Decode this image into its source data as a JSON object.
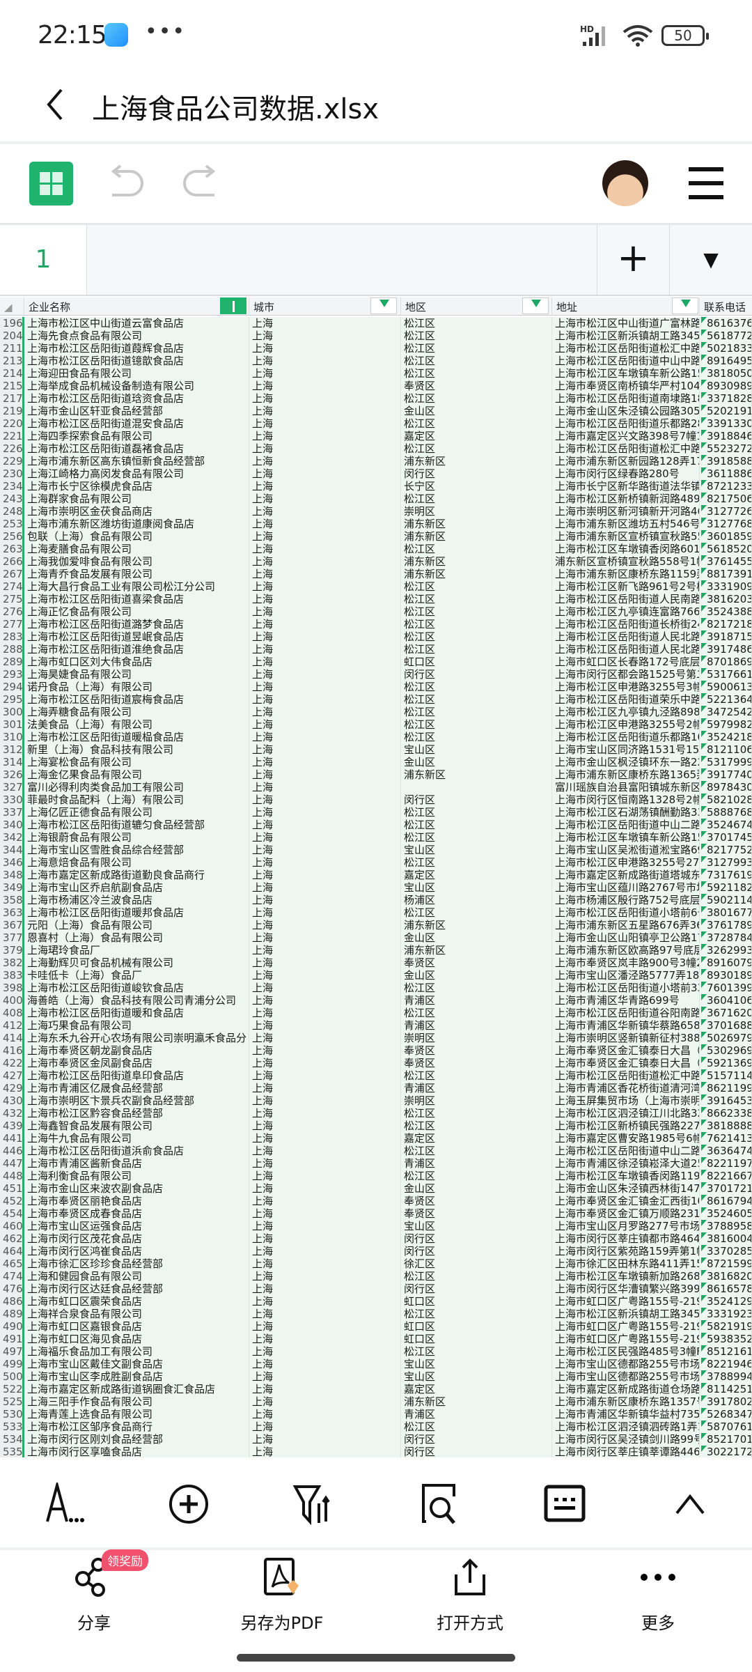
{
  "status_bar": {
    "time": "22:15",
    "battery": "50",
    "network": "HD"
  },
  "header": {
    "title": "上海食品公司数据.xlsx",
    "back_icon": "chevron-left-icon"
  },
  "toolbar": {
    "apps_icon": "grid-icon",
    "undo_icon": "undo-icon",
    "redo_icon": "redo-icon",
    "menu_icon": "hamburger-icon"
  },
  "formula_bar": {
    "cell_ref": "1",
    "add_label": "+",
    "dropdown_label": "▼"
  },
  "colors": {
    "accent": "#1fb36d",
    "selection": "#edf6f1",
    "badge": "#f2506c"
  },
  "table": {
    "columns": [
      "企业名称",
      "城市",
      "地区",
      "地址",
      "联系电话"
    ],
    "rows": [
      [
        "196",
        "上海市松江区中山街道云富食品店",
        "上海",
        "松江区",
        "上海市松江区中山街道广富林路",
        "8616376"
      ],
      [
        "204",
        "上海先食点食品有限公司",
        "上海",
        "松江区",
        "上海市松江区新浜镇胡工路345号",
        "5618772"
      ],
      [
        "211",
        "上海市松江区岳阳街道葭辉食品店",
        "上海",
        "松江区",
        "上海市松江区岳阳街道松汇中路",
        "5021833"
      ],
      [
        "213",
        "上海市松江区岳阳街道镱歆食品店",
        "上海",
        "松江区",
        "上海市松江区岳阳街道中山中路",
        "8916495"
      ],
      [
        "214",
        "上海迎田食品有限公司",
        "上海",
        "松江区",
        "上海市松江区车墩镇车新公路150",
        "3818050"
      ],
      [
        "215",
        "上海举成食品机械设备制造有限公司",
        "上海",
        "奉贤区",
        "上海市奉贤区南桥镇华严村1048",
        "8930989"
      ],
      [
        "217",
        "上海市松江区岳阳街道琀资食品店",
        "上海",
        "松江区",
        "上海市松江区岳阳街道南埭路18",
        "3371828"
      ],
      [
        "219",
        "上海市金山区轩亚食品经营部",
        "上海",
        "金山区",
        "上海市金山区朱泾镇公园路305弄",
        "5202191"
      ],
      [
        "220",
        "上海市松江区岳阳街道混安食品店",
        "上海",
        "松江区",
        "上海市松江区岳阳街道乐都路28",
        "3391330"
      ],
      [
        "221",
        "上海四季探索食品有限公司",
        "上海",
        "嘉定区",
        "上海市嘉定区兴文路398号7幢1层",
        "3918846"
      ],
      [
        "226",
        "上海市松江区岳阳街道磊褚食品店",
        "上海",
        "松江区",
        "上海市松江区岳阳街道松汇中路",
        "5523272"
      ],
      [
        "229",
        "上海市浦东新区高东镇恒新食品经营部",
        "上海",
        "浦东新区",
        "上海市浦东新区新园路128弄17号",
        "3918588"
      ],
      [
        "230",
        "上海江崎格力高闵发食品有限公司",
        "上海",
        "闵行区",
        "上海市闵行区绿春路280号",
        "3611886"
      ],
      [
        "234",
        "上海市长宁区徐模虎食品店",
        "上海",
        "长宁区",
        "上海市长宁区新华路街道法华镇",
        "8721233"
      ],
      [
        "243",
        "上海群家食品有限公司",
        "上海",
        "松江区",
        "上海市松江区新桥镇新润路489号",
        "8217506"
      ],
      [
        "248",
        "上海市崇明区金茯食品商店",
        "上海",
        "崇明区",
        "上海市崇明区新河镇新开河路46",
        "3127726"
      ],
      [
        "253",
        "上海市浦东新区潍坊街道康阅食品店",
        "上海",
        "浦东新区",
        "上海市浦东新区潍坊五村546号",
        "3127768"
      ],
      [
        "256",
        "包联（上海）食品有限公司",
        "上海",
        "浦东新区",
        "上海市浦东新区宣桥镇宣秋路55",
        "3601859"
      ],
      [
        "263",
        "上海麦膳食品有限公司",
        "上海",
        "松江区",
        "上海市松江区车墩镇香闵路601号",
        "5618520"
      ],
      [
        "266",
        "上海我伽爱啡食品有限公司",
        "上海",
        "浦东新区",
        "浦东新区宣桥镇宣秋路558号1幢",
        "3761455"
      ],
      [
        "267",
        "上海青乔食品发展有限公司",
        "上海",
        "浦东新区",
        "上海市浦东新区康桥东路1159弄",
        "8817391"
      ],
      [
        "274",
        "上海大昌行食品工业有限公司松江分公司",
        "上海",
        "松江区",
        "上海市松江区新飞路961号2号楼",
        "3331909"
      ],
      [
        "275",
        "上海市松江区岳阳街道喜梁食品店",
        "上海",
        "松江区",
        "上海市松江区岳阳街道人民南路",
        "3816203"
      ],
      [
        "276",
        "上海正忆食品有限公司",
        "上海",
        "松江区",
        "上海市松江区九亭镇连富路766号",
        "3524388"
      ],
      [
        "277",
        "上海市松江区岳阳街道潞梦食品店",
        "上海",
        "松江区",
        "上海市松江区岳阳街道长桥街24",
        "8217218"
      ],
      [
        "283",
        "上海市松江区岳阳街道昱岷食品店",
        "上海",
        "松江区",
        "上海市松江区岳阳街道人民北路",
        "3918715"
      ],
      [
        "288",
        "上海市松江区岳阳街道淮绝食品店",
        "上海",
        "松江区",
        "上海市松江区岳阳街道人民北路",
        "3917486"
      ],
      [
        "289",
        "上海市虹口区刘大伟食品店",
        "上海",
        "虹口区",
        "上海市虹口区长春路172号底层三",
        "8701869"
      ],
      [
        "293",
        "上海昊婕食品有限公司",
        "上海",
        "闵行区",
        "上海市闵行区都会路1525号第二",
        "5317661"
      ],
      [
        "294",
        "诺丹食品（上海）有限公司",
        "上海",
        "松江区",
        "上海市松江区申港路3255号3幢",
        "5900613"
      ],
      [
        "295",
        "上海市松江区岳阳街道宸梅食品店",
        "上海",
        "松江区",
        "上海市松江区岳阳街道荣乐中路",
        "5221364"
      ],
      [
        "300",
        "上海弄糖食品有限公司",
        "上海",
        "松江区",
        "上海市松江区九亭镇九泾路898号",
        "3472542"
      ],
      [
        "301",
        "法美食品（上海）有限公司",
        "上海",
        "松江区",
        "上海市松江区申港路3255号2幢",
        "5979982"
      ],
      [
        "310",
        "上海市松江区岳阳街道暖榀食品店",
        "上海",
        "松江区",
        "上海市松江区岳阳街道乐都路10",
        "3524218"
      ],
      [
        "312",
        "新里（上海）食品科技有限公司",
        "上海",
        "宝山区",
        "上海市宝山区同济路1531号15幢",
        "8121106"
      ],
      [
        "314",
        "上海宴松食品有限公司",
        "上海",
        "金山区",
        "上海市金山区枫泾镇环东一路22",
        "5317999"
      ],
      [
        "326",
        "上海金亿果食品有限公司",
        "上海",
        "浦东新区",
        "上海市浦东新区康桥东路1365弄",
        "3917740"
      ],
      [
        "327",
        "富川必得利肉类食品加工有限公司",
        "上海",
        "",
        "富川瑶族自治县富阳镇城东新区",
        "8978430"
      ],
      [
        "330",
        "菲最时食品配料（上海）有限公司",
        "上海",
        "闵行区",
        "上海市闵行区恒南路1328号2幢5",
        "5821028"
      ],
      [
        "337",
        "上海亿匠正德食品有限公司",
        "上海",
        "松江区",
        "上海市松江区石湖荡镇酬勤路33",
        "5888768"
      ],
      [
        "340",
        "上海市松江区岳阳街道辘匀食品经营部",
        "上海",
        "松江区",
        "上海市松江区岳阳街道中山二路",
        "3524674"
      ],
      [
        "342",
        "上海银蔚食品有限公司",
        "上海",
        "松江区",
        "上海市松江区车墩镇车新公路150",
        "3701745"
      ],
      [
        "344",
        "上海市宝山区雪胜食品综合经营部",
        "上海",
        "宝山区",
        "上海市宝山区吴淞街道淞宝路69",
        "8217752"
      ],
      [
        "346",
        "上海意焙食品有限公司",
        "上海",
        "松江区",
        "上海市松江区申港路3255号27幢",
        "3127993"
      ],
      [
        "348",
        "上海市嘉定区新成路街道勤良食品商行",
        "上海",
        "嘉定区",
        "上海市嘉定区新成路街道塔城东",
        "7317619"
      ],
      [
        "349",
        "上海市宝山区乔启航副食品店",
        "上海",
        "宝山区",
        "上海市宝山区蕴川路2767号市场",
        "5921182"
      ],
      [
        "358",
        "上海市杨浦区冷兰波食品店",
        "上海",
        "杨浦区",
        "上海市杨浦区殷行路752号底层",
        "5902114"
      ],
      [
        "363",
        "上海市松江区岳阳街道暖邦食品店",
        "上海",
        "松江区",
        "上海市松江区岳阳街道小塔前6号",
        "3801677"
      ],
      [
        "367",
        "元阳（上海）食品有限公司",
        "上海",
        "浦东新区",
        "上海市浦东新区五星路676弄36",
        "3761789"
      ],
      [
        "377",
        "恩喜村（上海）食品有限公司",
        "上海",
        "金山区",
        "上海市金山区山阳镇亭卫公路178",
        "3728784"
      ],
      [
        "379",
        "上海珺玲食品厂",
        "上海",
        "浦东新区",
        "上海市浦东新区欧高路97号底层",
        "3262993"
      ],
      [
        "382",
        "上海勤辉贝可食品机械有限公司",
        "上海",
        "奉贤区",
        "上海市奉贤区岚丰路900号3幢2",
        "8916079"
      ],
      [
        "383",
        "卡哇低卡（上海）食品厂",
        "上海",
        "金山区",
        "上海市宝山区潘泾路5777弄188号",
        "8930189"
      ],
      [
        "398",
        "上海市松江区岳阳街道峻钦食品店",
        "上海",
        "松江区",
        "上海市松江区岳阳街道小塔前33",
        "7601399"
      ],
      [
        "400",
        "海善皓（上海）食品科技有限公司青浦分公司",
        "上海",
        "青浦区",
        "上海市青浦区华青路699号",
        "3604106"
      ],
      [
        "408",
        "上海市松江区岳阳街道暖和食品店",
        "上海",
        "松江区",
        "上海市松江区岳阳街道谷阳南路",
        "3671620"
      ],
      [
        "412",
        "上海巧果食品有限公司",
        "上海",
        "青浦区",
        "上海市青浦区华新镇华蔡路658号",
        "3701688"
      ],
      [
        "414",
        "上海东禾九谷开心农场有限公司崇明瀛禾食品分",
        "上海",
        "崇明区",
        "上海市崇明区竖新镇新征村388号",
        "5026979"
      ],
      [
        "416",
        "上海市奉贤区朝龙副食品店",
        "上海",
        "奉贤区",
        "上海市奉贤区金汇镇泰日大昌（",
        "5302969"
      ],
      [
        "422",
        "上海市奉贤区金凤副食品店",
        "上海",
        "奉贤区",
        "上海市奉贤区金汇镇泰日大昌（",
        "5921369"
      ],
      [
        "427",
        "上海市松江区岳阳街道阜印食品店",
        "上海",
        "松江区",
        "上海市松江区岳阳街道松汇中路",
        "5157114"
      ],
      [
        "429",
        "上海市青浦区亿晟食品经营部",
        "上海",
        "青浦区",
        "上海市青浦区香花桥街道清河湾",
        "8621199"
      ],
      [
        "430",
        "上海市崇明区卞景兵农副食品经营部",
        "上海",
        "崇明区",
        "上海玉屏集贸市场（上海市崇明",
        "3916453"
      ],
      [
        "432",
        "上海市松江区黔容食品经营部",
        "上海",
        "松江区",
        "上海市松江区泗泾镇江川北路32",
        "8662338"
      ],
      [
        "439",
        "上海鑫智食品发展有限公司",
        "上海",
        "松江区",
        "上海市松江区新桥镇民强路227号",
        "3818888"
      ],
      [
        "441",
        "上海牛九食品有限公司",
        "上海",
        "嘉定区",
        "上海市嘉定区曹安路1985号6幢2",
        "7621413"
      ],
      [
        "446",
        "上海市松江区岳阳街道浜俞食品店",
        "上海",
        "松江区",
        "上海市松江区岳阳街道中山二路",
        "3636474"
      ],
      [
        "447",
        "上海市青浦区酱新食品店",
        "上海",
        "青浦区",
        "上海市青浦区徐泾镇崧泽大道25",
        "8221197"
      ],
      [
        "448",
        "上海利衡食品有限公司",
        "上海",
        "松江区",
        "上海市松江区车墩镇香闵路1191、",
        "8221667"
      ],
      [
        "451",
        "上海市金山区来波农副食品店",
        "上海",
        "金山区",
        "上海市金山区朱泾镇西林街147号",
        "3701721"
      ],
      [
        "452",
        "上海市奉贤区丽艳食品店",
        "上海",
        "奉贤区",
        "上海市奉贤区金汇镇金汇西街10",
        "8616794"
      ],
      [
        "454",
        "上海市奉贤区成春食品店",
        "上海",
        "奉贤区",
        "上海市奉贤区金汇镇万顺路2316",
        "3524605"
      ],
      [
        "460",
        "上海市宝山区运强食品店",
        "上海",
        "宝山区",
        "上海市宝山区月罗路277号市场内",
        "3788958"
      ],
      [
        "462",
        "上海市闵行区茂花食品店",
        "上海",
        "闵行区",
        "上海市闵行区莘庄镇都市路4640",
        "3816004"
      ],
      [
        "464",
        "上海市闵行区鸿崔食品店",
        "上海",
        "闵行区",
        "上海市闵行区紫苑路159弄第1幢",
        "3370285"
      ],
      [
        "465",
        "上海市徐汇区珍珍食品经营部",
        "上海",
        "徐汇区",
        "上海市徐汇区田林东路411弄15号",
        "8721599"
      ],
      [
        "474",
        "上海和健园食品有限公司",
        "上海",
        "松江区",
        "上海市松江区车墩镇新加路268号",
        "3816820"
      ],
      [
        "476",
        "上海市闵行区达廷食品经营部",
        "上海",
        "闵行区",
        "上海市闵行区华漕镇繁兴路399弄",
        "8616578"
      ],
      [
        "486",
        "上海市虹口区震荣食品店",
        "上海",
        "虹口区",
        "上海市虹口区广粤路155号-219号",
        "3524129"
      ],
      [
        "489",
        "上海祥合泉食品有限公司",
        "上海",
        "松江区",
        "上海市松江区新浜镇胡工路345号",
        "3331923"
      ],
      [
        "490",
        "上海市虹口区嘉银食品店",
        "上海",
        "虹口区",
        "上海市虹口区广粤路155号-219号",
        "5821919"
      ],
      [
        "491",
        "上海市虹口区海见食品店",
        "上海",
        "虹口区",
        "上海市虹口区广粤路155号-219号",
        "5938352"
      ],
      [
        "497",
        "上海福乐食品加工有限公司",
        "上海",
        "松江区",
        "上海市松江区民强路485号3幢F",
        "8512161"
      ],
      [
        "499",
        "上海市宝山区戴佳文副食品店",
        "上海",
        "宝山区",
        "上海市宝山区德都路255号市场内",
        "8221946"
      ],
      [
        "500",
        "上海市宝山区李成胜副食品店",
        "上海",
        "宝山区",
        "上海市宝山区德都路255号市场内",
        "3788994"
      ],
      [
        "522",
        "上海市嘉定区新成路街道锅圈食汇食品店",
        "上海",
        "嘉定区",
        "上海市嘉定区新成路街道仓场路",
        "8114251"
      ],
      [
        "525",
        "上海三阳手作食品有限公司",
        "上海",
        "浦东新区",
        "上海市浦东新区康桥东路1357号",
        "3917802"
      ],
      [
        "530",
        "上海青莲上选食品有限公司",
        "上海",
        "青浦区",
        "上海市青浦区华新镇华益村735-",
        "5268347"
      ],
      [
        "533",
        "上海市松江区邹序食品商行",
        "上海",
        "松江区",
        "上海市松江区泗泾镇泗砖路1弄13",
        "5870761"
      ],
      [
        "534",
        "上海市闵行区刚刘食品经营部",
        "上海",
        "闵行区",
        "上海市闵行区吴泾镇剑川路99号",
        "8521701"
      ],
      [
        "535",
        "上海市闵行区享嗑食品店",
        "上海",
        "闵行区",
        "上海市闵行区莘庄镇莘谭路446号",
        "3022172"
      ]
    ]
  },
  "bottom_toolbar": {
    "icons": [
      "font-style-icon",
      "insert-icon",
      "filter-sort-icon",
      "find-icon",
      "keyboard-icon",
      "collapse-icon"
    ]
  },
  "actions": [
    {
      "label": "分享",
      "icon": "share-icon",
      "badge": "领奖励"
    },
    {
      "label": "另存为PDF",
      "icon": "pdf-icon"
    },
    {
      "label": "打开方式",
      "icon": "open-with-icon"
    },
    {
      "label": "更多",
      "icon": "more-icon"
    }
  ]
}
